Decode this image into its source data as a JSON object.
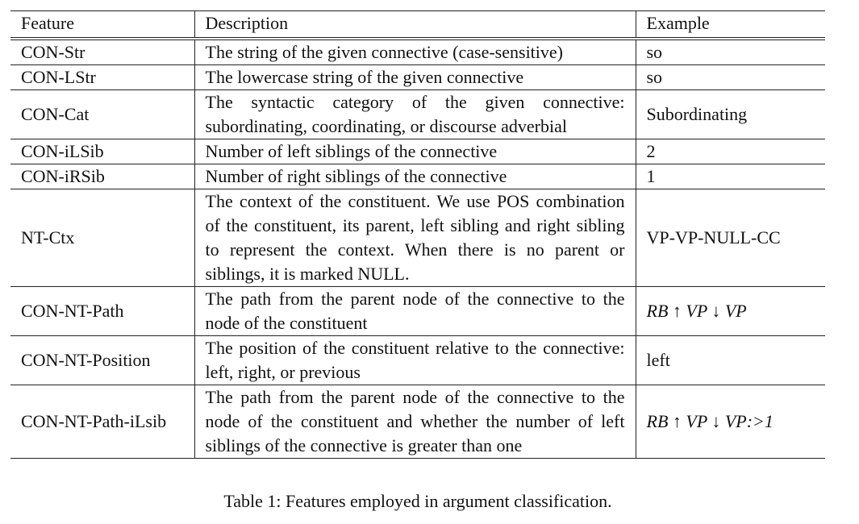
{
  "table": {
    "headers": {
      "feature": "Feature",
      "description": "Description",
      "example": "Example"
    },
    "rows": [
      {
        "feature": "CON-Str",
        "description": "The string of the given connective (case-sensitive)",
        "example": "so"
      },
      {
        "feature": "CON-LStr",
        "description": "The lowercase string of the given connective",
        "example": "so"
      },
      {
        "feature": "CON-Cat",
        "description": "The syntactic category of the given connective: subordinating, coordinating, or discourse adverbial",
        "example": "Subordinating"
      },
      {
        "feature": "CON-iLSib",
        "description": "Number of left siblings of the connective",
        "example": "2"
      },
      {
        "feature": "CON-iRSib",
        "description": "Number of right siblings of the connective",
        "example": "1"
      },
      {
        "feature": "NT-Ctx",
        "description": "The context of the constituent. We use POS combination of the constituent, its parent, left sibling and right sibling to represent the context. When there is no parent or siblings, it is marked NULL.",
        "example": "VP-VP-NULL-CC"
      },
      {
        "feature": "CON-NT-Path",
        "description": "The path from the parent node of the connective to the node of the constituent",
        "example": "RB ↑ VP ↓ VP"
      },
      {
        "feature": "CON-NT-Position",
        "description": "The position of the constituent relative to the connective: left, right, or previous",
        "example": "left"
      },
      {
        "feature": "CON-NT-Path-iLsib",
        "description": "The path from the parent node of the connective to the node of the constituent and whether the number of left siblings of the connective is greater than one",
        "example": "RB ↑ VP ↓ VP:>1"
      }
    ]
  },
  "caption": "Table 1: Features employed in argument classification."
}
